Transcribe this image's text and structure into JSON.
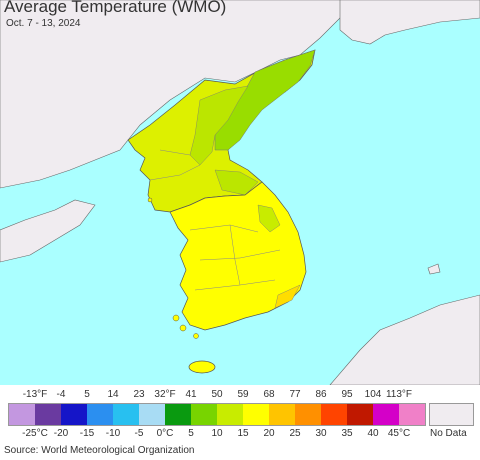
{
  "title": "Average Temperature (WMO)",
  "subtitle": "Oct. 7 - 13, 2024",
  "legend": {
    "fahrenheit_ticks": [
      "-13°F",
      "-4",
      "5",
      "14",
      "23",
      "32°F",
      "41",
      "50",
      "59",
      "68",
      "77",
      "86",
      "95",
      "104",
      "113°F"
    ],
    "celsius_ticks": [
      "-25°C",
      "-20",
      "-15",
      "-10",
      "-5",
      "0°C",
      "5",
      "10",
      "15",
      "20",
      "25",
      "30",
      "35",
      "40",
      "45°C"
    ],
    "colors": [
      "#c397e0",
      "#6a3aa0",
      "#1515c8",
      "#2b8ff0",
      "#28c0f0",
      "#a8dcf4",
      "#0a9a10",
      "#78d400",
      "#c8ec00",
      "#ffff00",
      "#ffc400",
      "#ff9000",
      "#ff4400",
      "#c01800",
      "#d400c8",
      "#f080c8"
    ],
    "no_data_label": "No Data",
    "no_data_color": "#f0ecf0"
  },
  "map": {
    "ocean_color": "#aaffff",
    "land_outside_color": "#f0ecf0",
    "region_colors": {
      "north_east": "#99dd00",
      "mountains": "#bbe600",
      "north": "#ddf000",
      "south": "#ffff00",
      "south_coast": "#ffdd00"
    }
  },
  "source": "Source: World Meteorological Organization"
}
